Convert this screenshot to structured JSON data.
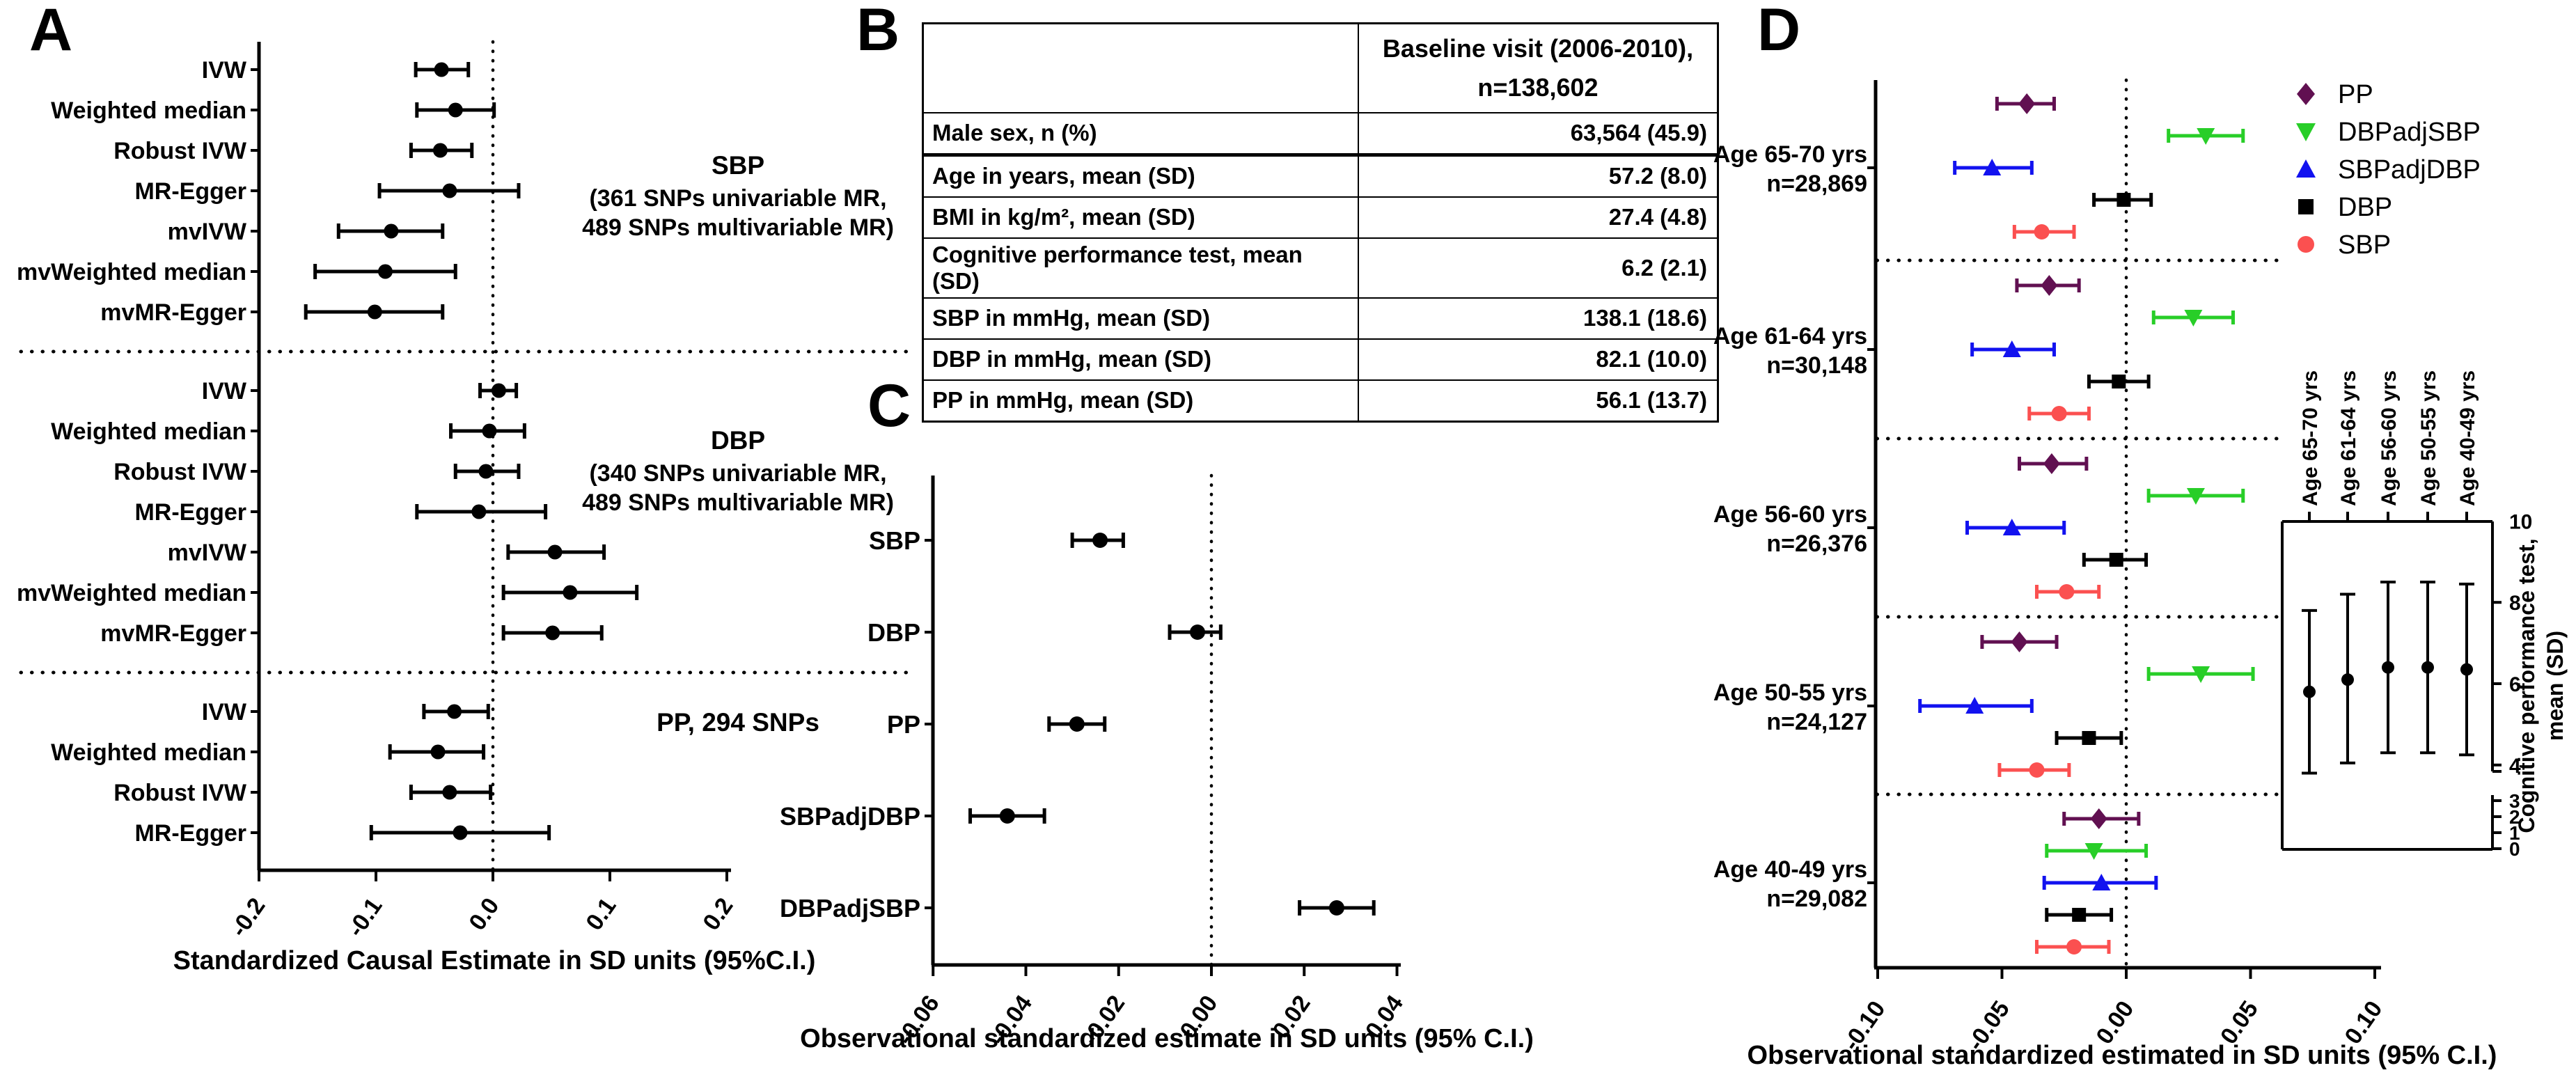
{
  "figure": {
    "background": "#ffffff"
  },
  "panels": {
    "A": {
      "letter": "A"
    },
    "B": {
      "letter": "B",
      "table": {
        "header_line1": "Baseline visit (2006-2010),",
        "header_line2": "n=138,602",
        "rows": [
          {
            "label": "Male sex, n (%)",
            "value": "63,564 (45.9)"
          },
          {
            "label": "Age in years, mean (SD)",
            "value": "57.2 (8.0)"
          },
          {
            "label": "BMI in kg/m², mean (SD)",
            "value": "27.4 (4.8)"
          },
          {
            "label": "Cognitive performance test, mean (SD)",
            "value": "6.2 (2.1)"
          },
          {
            "label": "SBP in mmHg, mean (SD)",
            "value": "138.1 (18.6)"
          },
          {
            "label": "DBP in mmHg, mean (SD)",
            "value": "82.1 (10.0)"
          },
          {
            "label": "PP in mmHg, mean (SD)",
            "value": "56.1 (13.7)"
          }
        ]
      }
    },
    "C": {
      "letter": "C"
    },
    "D": {
      "letter": "D"
    }
  },
  "chart_data": [
    {
      "id": "panelA",
      "type": "forest",
      "xlabel": "Standardized Causal Estimate in SD units (95%C.I.)",
      "xlim": [
        -0.2,
        0.2
      ],
      "xtick_labels": [
        "-0.2",
        "-0.1",
        "0.0",
        "0.1",
        "0.2"
      ],
      "xtick_values": [
        -0.2,
        -0.1,
        0.0,
        0.1,
        0.2
      ],
      "zero_line": 0.0,
      "grid": false,
      "groups": [
        {
          "annotation_title": "SBP",
          "annotation_lines": [
            "(361 SNPs univariable MR,",
            "489 SNPs multivariable MR)"
          ],
          "rows": [
            {
              "label": "IVW",
              "est": -0.044,
              "lo": -0.066,
              "hi": -0.021
            },
            {
              "label": "Weighted median",
              "est": -0.032,
              "lo": -0.065,
              "hi": 0.001
            },
            {
              "label": "Robust IVW",
              "est": -0.045,
              "lo": -0.07,
              "hi": -0.018
            },
            {
              "label": "MR-Egger",
              "est": -0.037,
              "lo": -0.097,
              "hi": 0.022
            },
            {
              "label": "mvIVW",
              "est": -0.087,
              "lo": -0.132,
              "hi": -0.043
            },
            {
              "label": "mvWeighted median",
              "est": -0.092,
              "lo": -0.152,
              "hi": -0.032
            },
            {
              "label": "mvMR-Egger",
              "est": -0.101,
              "lo": -0.16,
              "hi": -0.043
            }
          ]
        },
        {
          "annotation_title": "DBP",
          "annotation_lines": [
            "(340 SNPs univariable MR,",
            "489 SNPs multivariable MR)"
          ],
          "rows": [
            {
              "label": "IVW",
              "est": 0.005,
              "lo": -0.011,
              "hi": 0.02
            },
            {
              "label": "Weighted median",
              "est": -0.003,
              "lo": -0.036,
              "hi": 0.027
            },
            {
              "label": "Robust IVW",
              "est": -0.006,
              "lo": -0.032,
              "hi": 0.022
            },
            {
              "label": "MR-Egger",
              "est": -0.012,
              "lo": -0.065,
              "hi": 0.045
            },
            {
              "label": "mvIVW",
              "est": 0.053,
              "lo": 0.013,
              "hi": 0.095
            },
            {
              "label": "mvWeighted median",
              "est": 0.066,
              "lo": 0.009,
              "hi": 0.123
            },
            {
              "label": "mvMR-Egger",
              "est": 0.051,
              "lo": 0.009,
              "hi": 0.093
            }
          ]
        },
        {
          "annotation_title": "PP, 294 SNPs",
          "annotation_lines": [],
          "rows": [
            {
              "label": "IVW",
              "est": -0.033,
              "lo": -0.059,
              "hi": -0.004
            },
            {
              "label": "Weighted median",
              "est": -0.047,
              "lo": -0.088,
              "hi": -0.008
            },
            {
              "label": "Robust IVW",
              "est": -0.037,
              "lo": -0.07,
              "hi": -0.002
            },
            {
              "label": "MR-Egger",
              "est": -0.028,
              "lo": -0.104,
              "hi": 0.048
            }
          ]
        }
      ]
    },
    {
      "id": "panelC",
      "type": "forest",
      "xlabel": "Observational standardized estimate in SD units (95% C.I.)",
      "xlim": [
        -0.06,
        0.045
      ],
      "xtick_labels": [
        "-0.06",
        "-0.04",
        "-0.02",
        "0.00",
        "0.02",
        "0.04"
      ],
      "xtick_values": [
        -0.06,
        -0.04,
        -0.02,
        0.0,
        0.02,
        0.04
      ],
      "zero_line": 0.0,
      "grid": false,
      "rows": [
        {
          "label": "SBP",
          "est": -0.024,
          "lo": -0.03,
          "hi": -0.019
        },
        {
          "label": "DBP",
          "est": -0.003,
          "lo": -0.009,
          "hi": 0.002
        },
        {
          "label": "PP",
          "est": -0.029,
          "lo": -0.035,
          "hi": -0.023
        },
        {
          "label": "SBPadjDBP",
          "est": -0.044,
          "lo": -0.052,
          "hi": -0.036
        },
        {
          "label": "DBPadjSBP",
          "est": 0.027,
          "lo": 0.019,
          "hi": 0.035
        }
      ]
    },
    {
      "id": "panelD",
      "type": "forest-grouped",
      "xlabel": "Observational standardized estimated in SD units (95% C.I.)",
      "xlim": [
        -0.1,
        0.102
      ],
      "xtick_labels": [
        "-0.10",
        "-0.05",
        "0.00",
        "0.05",
        "0.10"
      ],
      "xtick_values": [
        -0.1,
        -0.05,
        0.0,
        0.05,
        0.1
      ],
      "zero_line": 0.0,
      "legend_position": "top-right",
      "legend": [
        {
          "name": "PP",
          "marker": "diamond",
          "color": "#611051"
        },
        {
          "name": "DBPadjSBP",
          "marker": "triangle-down",
          "color": "#28CE28"
        },
        {
          "name": "SBPadjDBP",
          "marker": "triangle-up",
          "color": "#1212EF"
        },
        {
          "name": "DBP",
          "marker": "square",
          "color": "#000000"
        },
        {
          "name": "SBP",
          "marker": "circle",
          "color": "#FB5050"
        }
      ],
      "groups": [
        {
          "label": "Age 65-70 yrs",
          "n": "n=28,869",
          "rows": [
            {
              "series": "PP",
              "est": -0.04,
              "lo": -0.052,
              "hi": -0.029
            },
            {
              "series": "DBPadjSBP",
              "est": 0.032,
              "lo": 0.017,
              "hi": 0.047
            },
            {
              "series": "SBPadjDBP",
              "est": -0.054,
              "lo": -0.069,
              "hi": -0.038
            },
            {
              "series": "DBP",
              "est": -0.001,
              "lo": -0.013,
              "hi": 0.01
            },
            {
              "series": "SBP",
              "est": -0.034,
              "lo": -0.045,
              "hi": -0.021
            }
          ]
        },
        {
          "label": "Age 61-64 yrs",
          "n": "n=30,148",
          "rows": [
            {
              "series": "PP",
              "est": -0.031,
              "lo": -0.044,
              "hi": -0.019
            },
            {
              "series": "DBPadjSBP",
              "est": 0.027,
              "lo": 0.011,
              "hi": 0.043
            },
            {
              "series": "SBPadjDBP",
              "est": -0.046,
              "lo": -0.062,
              "hi": -0.029
            },
            {
              "series": "DBP",
              "est": -0.003,
              "lo": -0.015,
              "hi": 0.009
            },
            {
              "series": "SBP",
              "est": -0.027,
              "lo": -0.039,
              "hi": -0.015
            }
          ]
        },
        {
          "label": "Age 56-60 yrs",
          "n": "n=26,376",
          "rows": [
            {
              "series": "PP",
              "est": -0.03,
              "lo": -0.043,
              "hi": -0.016
            },
            {
              "series": "DBPadjSBP",
              "est": 0.028,
              "lo": 0.009,
              "hi": 0.047
            },
            {
              "series": "SBPadjDBP",
              "est": -0.046,
              "lo": -0.064,
              "hi": -0.025
            },
            {
              "series": "DBP",
              "est": -0.004,
              "lo": -0.017,
              "hi": 0.008
            },
            {
              "series": "SBP",
              "est": -0.024,
              "lo": -0.036,
              "hi": -0.011
            }
          ]
        },
        {
          "label": "Age 50-55 yrs",
          "n": "n=24,127",
          "rows": [
            {
              "series": "PP",
              "est": -0.043,
              "lo": -0.058,
              "hi": -0.028
            },
            {
              "series": "DBPadjSBP",
              "est": 0.03,
              "lo": 0.009,
              "hi": 0.051
            },
            {
              "series": "SBPadjDBP",
              "est": -0.061,
              "lo": -0.083,
              "hi": -0.038
            },
            {
              "series": "DBP",
              "est": -0.015,
              "lo": -0.028,
              "hi": -0.002
            },
            {
              "series": "SBP",
              "est": -0.036,
              "lo": -0.051,
              "hi": -0.023
            }
          ]
        },
        {
          "label": "Age 40-49 yrs",
          "n": "n=29,082",
          "rows": [
            {
              "series": "PP",
              "est": -0.011,
              "lo": -0.025,
              "hi": 0.005
            },
            {
              "series": "DBPadjSBP",
              "est": -0.013,
              "lo": -0.032,
              "hi": 0.008
            },
            {
              "series": "SBPadjDBP",
              "est": -0.01,
              "lo": -0.033,
              "hi": 0.012
            },
            {
              "series": "DBP",
              "est": -0.019,
              "lo": -0.032,
              "hi": -0.006
            },
            {
              "series": "SBP",
              "est": -0.021,
              "lo": -0.036,
              "hi": -0.007
            }
          ]
        }
      ]
    },
    {
      "id": "panelD-inset",
      "type": "errorbar",
      "ylabel_line1": "Cognitive performance test,",
      "ylabel_line2": "mean (SD)",
      "categories": [
        "Age 65-70 yrs",
        "Age 61-64 yrs",
        "Age 56-60 yrs",
        "Age 50-55 yrs",
        "Age 40-49 yrs"
      ],
      "means": [
        5.8,
        6.1,
        6.4,
        6.4,
        6.35
      ],
      "lo": [
        3.8,
        4.05,
        4.3,
        4.3,
        4.25
      ],
      "hi": [
        7.8,
        8.2,
        8.5,
        8.5,
        8.45
      ],
      "ytick_labels": [
        "10",
        "8",
        "6",
        "4"
      ],
      "ytick_values": [
        10,
        8,
        6,
        4
      ],
      "break_ytick_labels": [
        "3",
        "2",
        "1",
        "0"
      ],
      "axis_break": true
    }
  ]
}
